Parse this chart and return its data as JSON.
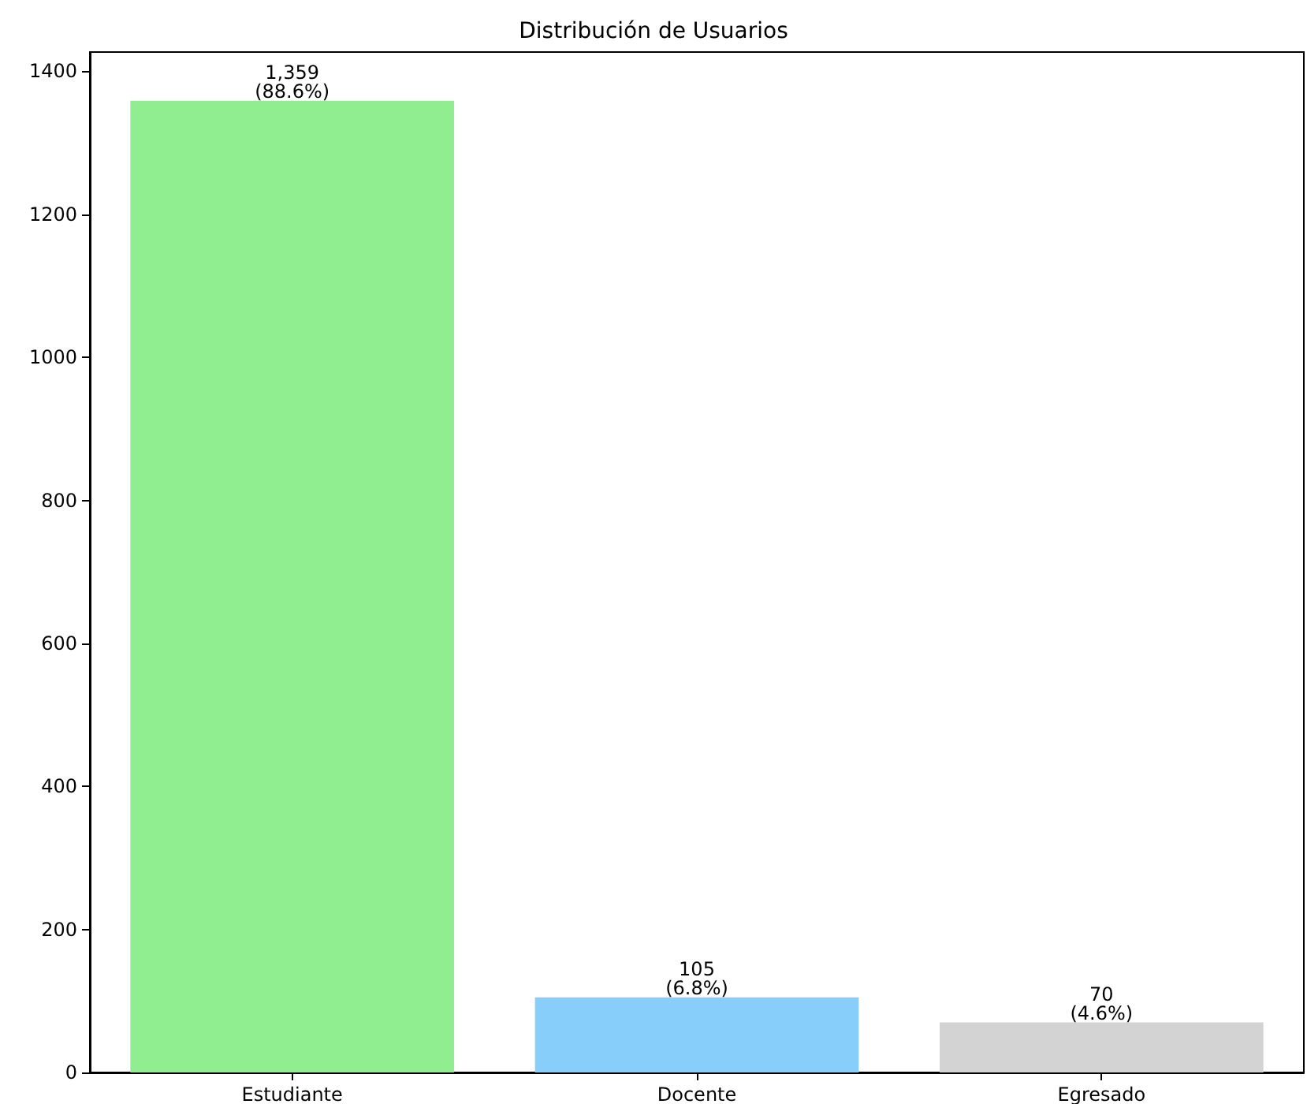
{
  "chart_data": {
    "type": "bar",
    "title": "Distribución de Usuarios",
    "categories": [
      "Estudiante",
      "Docente",
      "Egresado"
    ],
    "values": [
      1359,
      105,
      70
    ],
    "colors": [
      "#90ee90",
      "#87cefa",
      "#d3d3d3"
    ],
    "value_labels": [
      "1,359\n(88.6%)",
      "105\n(6.8%)",
      "70\n(4.6%)"
    ],
    "ylim": [
      0,
      1427
    ],
    "yticks": [
      0,
      200,
      400,
      600,
      800,
      1000,
      1200,
      1400
    ],
    "grid": false
  }
}
